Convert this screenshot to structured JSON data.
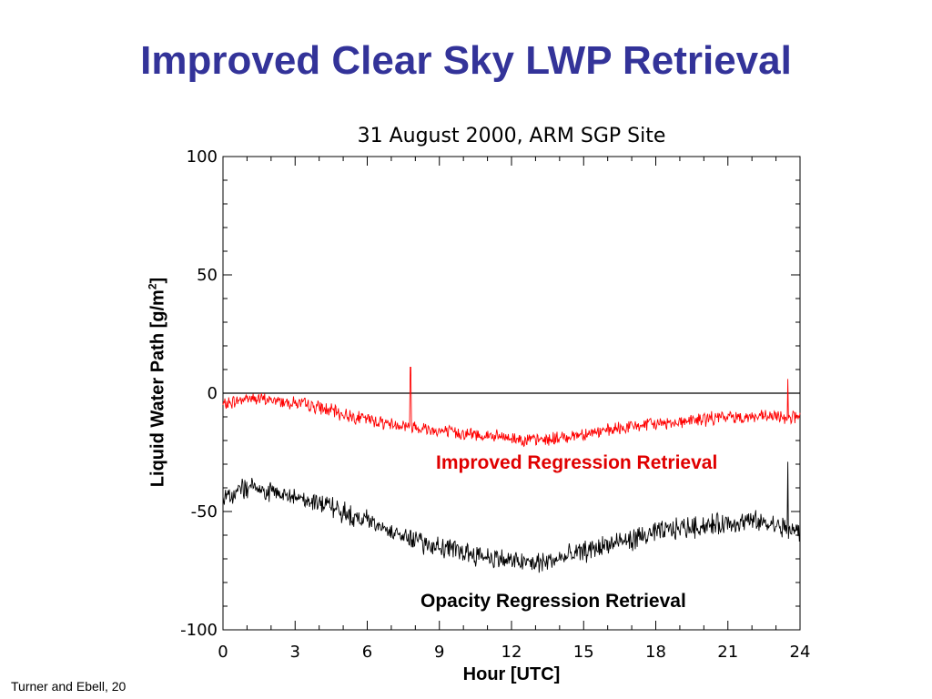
{
  "slide": {
    "title": "Improved Clear Sky LWP Retrieval",
    "footer": "Turner and Ebell, 20"
  },
  "chart_data": {
    "type": "line",
    "title": "31 August 2000, ARM SGP Site",
    "xlabel": "Hour [UTC]",
    "ylabel_main": "Liquid Water Path [g/m",
    "ylabel_sup": "2",
    "ylabel_end": "]",
    "xlim": [
      0,
      24
    ],
    "ylim": [
      -100,
      100
    ],
    "x_ticks": [
      0,
      3,
      6,
      9,
      12,
      15,
      18,
      21,
      24
    ],
    "y_ticks": [
      -100,
      -50,
      0,
      50,
      100
    ],
    "x_tick_labels": [
      "0",
      "3",
      "6",
      "9",
      "12",
      "15",
      "18",
      "21",
      "24"
    ],
    "y_tick_labels": [
      "-100",
      "-50",
      "0",
      "50",
      "100"
    ],
    "reference_line_y": 0,
    "grid": false,
    "series": [
      {
        "name": "Improved Regression Retrieval",
        "color": "#ff0000",
        "x": [
          0,
          1,
          2,
          3,
          4,
          5,
          6,
          7,
          8,
          9,
          10,
          11,
          12,
          13,
          14,
          15,
          16,
          17,
          18,
          19,
          20,
          21,
          22,
          23,
          24
        ],
        "y": [
          -5,
          -2,
          -3,
          -4,
          -6,
          -9,
          -11,
          -13,
          -14,
          -16,
          -17,
          -18,
          -19,
          -20,
          -19,
          -17,
          -16,
          -14,
          -13,
          -12,
          -11,
          -10,
          -10,
          -10,
          -10
        ],
        "spikes": [
          {
            "x": 7.8,
            "y": 11
          },
          {
            "x": 23.5,
            "y": 6
          }
        ]
      },
      {
        "name": "Opacity Regression Retrieval",
        "color": "#000000",
        "x": [
          0,
          1,
          2,
          3,
          4,
          5,
          6,
          7,
          8,
          9,
          10,
          11,
          12,
          13,
          14,
          15,
          16,
          17,
          18,
          19,
          20,
          21,
          22,
          23,
          24
        ],
        "y": [
          -45,
          -40,
          -42,
          -44,
          -46,
          -50,
          -54,
          -58,
          -62,
          -65,
          -67,
          -69,
          -71,
          -72,
          -70,
          -67,
          -64,
          -62,
          -59,
          -57,
          -56,
          -55,
          -54,
          -56,
          -59
        ],
        "spikes": [
          {
            "x": 7.8,
            "y": -58
          },
          {
            "x": 23.5,
            "y": -29
          }
        ]
      }
    ],
    "annotations": [
      "Improved Regression Retrieval",
      "Opacity Regression Retrieval"
    ]
  }
}
